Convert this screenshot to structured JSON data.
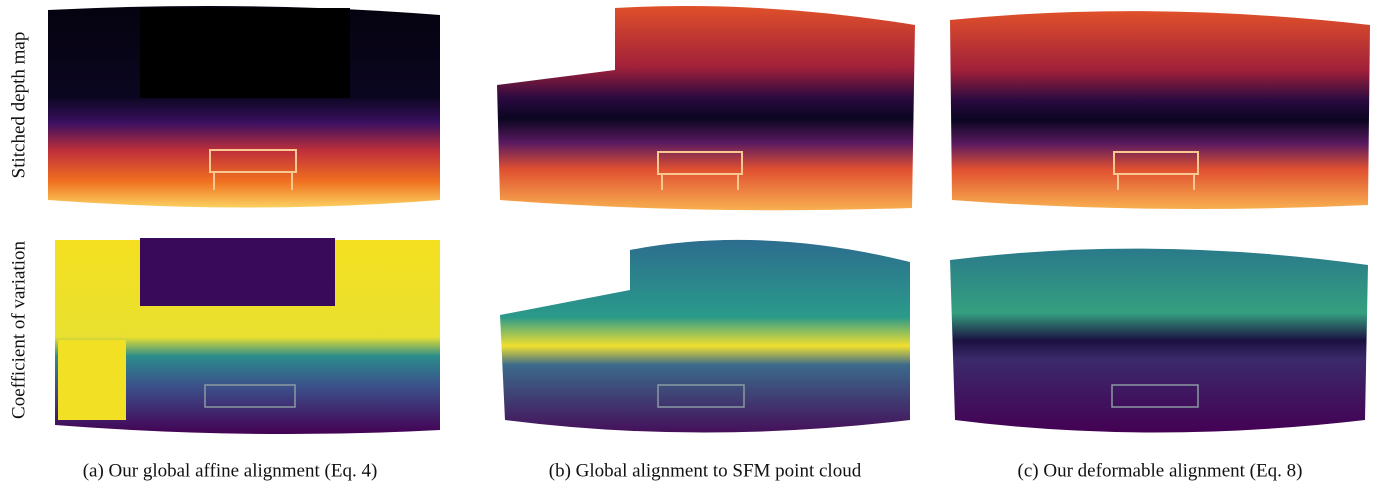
{
  "row_labels": [
    "Stitched depth map",
    "Coefficient of variation"
  ],
  "captions": [
    "(a) Our global affine alignment (Eq. 4)",
    "(b) Global alignment to SFM point cloud",
    "(c) Our deformable alignment (Eq. 8)"
  ]
}
